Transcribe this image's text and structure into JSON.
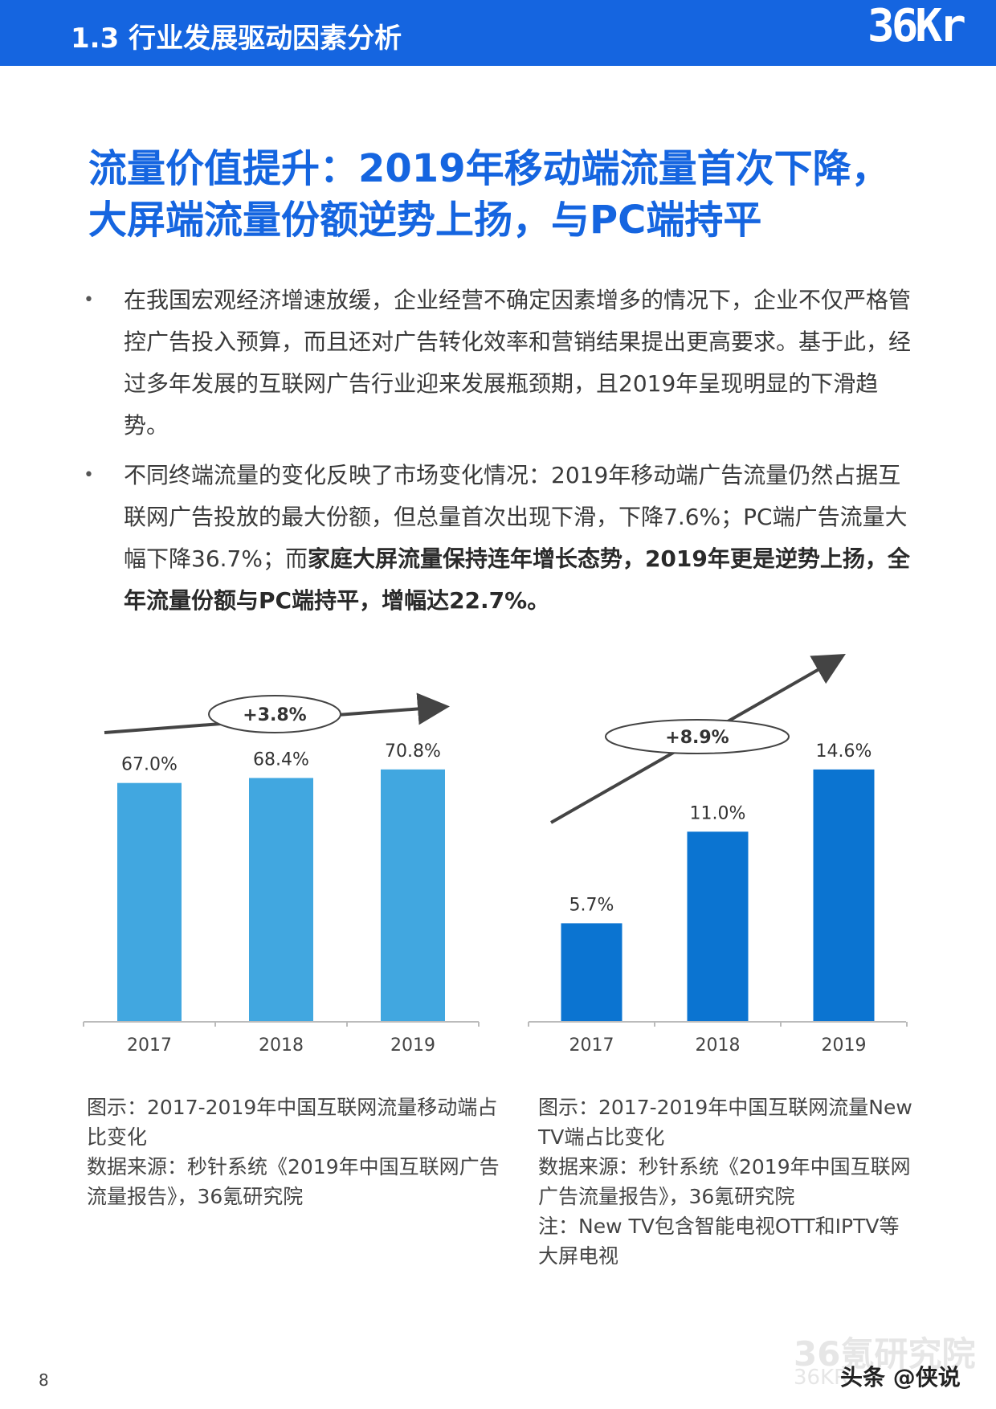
{
  "header": {
    "title": "1.3 行业发展驱动因素分析",
    "logo": "36Kr"
  },
  "headline": {
    "line1": "流量价值提升：2019年移动端流量首次下降，",
    "line2": "大屏端流量份额逆势上扬，与PC端持平"
  },
  "bullets": [
    {
      "text": "在我国宏观经济增速放缓，企业经营不确定因素增多的情况下，企业不仅严格管控广告投入预算，而且还对广告转化效率和营销结果提出更高要求。基于此，经过多年发展的互联网广告行业迎来发展瓶颈期，且2019年呈现明显的下滑趋势。"
    },
    {
      "text": "不同终端流量的变化反映了市场变化情况：2019年移动端广告流量仍然占据互联网广告投放的最大份额，但总量首次出现下滑，下降7.6%；PC端广告流量大幅下降36.7%；而",
      "bold": "家庭大屏流量保持连年增长态势，2019年更是逆势上扬，全年流量份额与PC端持平，增幅达22.7%。"
    }
  ],
  "chart_data": [
    {
      "type": "bar",
      "categories": [
        "2017",
        "2018",
        "2019"
      ],
      "values": [
        67.0,
        68.4,
        70.8
      ],
      "labels": [
        "67.0%",
        "68.4%",
        "70.8%"
      ],
      "annotation": "+3.8%",
      "color": "#41a7e0",
      "ylim": [
        0,
        80
      ],
      "title": "",
      "xlabel": "",
      "ylabel": ""
    },
    {
      "type": "bar",
      "categories": [
        "2017",
        "2018",
        "2019"
      ],
      "values": [
        5.7,
        11.0,
        14.6
      ],
      "labels": [
        "5.7%",
        "11.0%",
        "14.6%"
      ],
      "annotation": "+8.9%",
      "color": "#0b74d1",
      "ylim": [
        0,
        16.5
      ],
      "title": "",
      "xlabel": "",
      "ylabel": ""
    }
  ],
  "captions": {
    "left": [
      "图示：2017-2019年中国互联网流量移动端占",
      "比变化",
      "数据来源：秒针系统《2019年中国互联网广告",
      "流量报告》，36氪研究院"
    ],
    "right": [
      "图示：2017-2019年中国互联网流量New",
      "TV端占比变化",
      "数据来源：秒针系统《2019年中国互联网",
      "广告流量报告》，36氪研究院",
      "注：New TV包含智能电视OTT和IPTV等",
      "大屏电视"
    ]
  },
  "footer": {
    "page_number": "8",
    "watermark_main": "36氪研究院",
    "watermark_sub": "36KR",
    "source_tag": "头条 @侠说"
  }
}
